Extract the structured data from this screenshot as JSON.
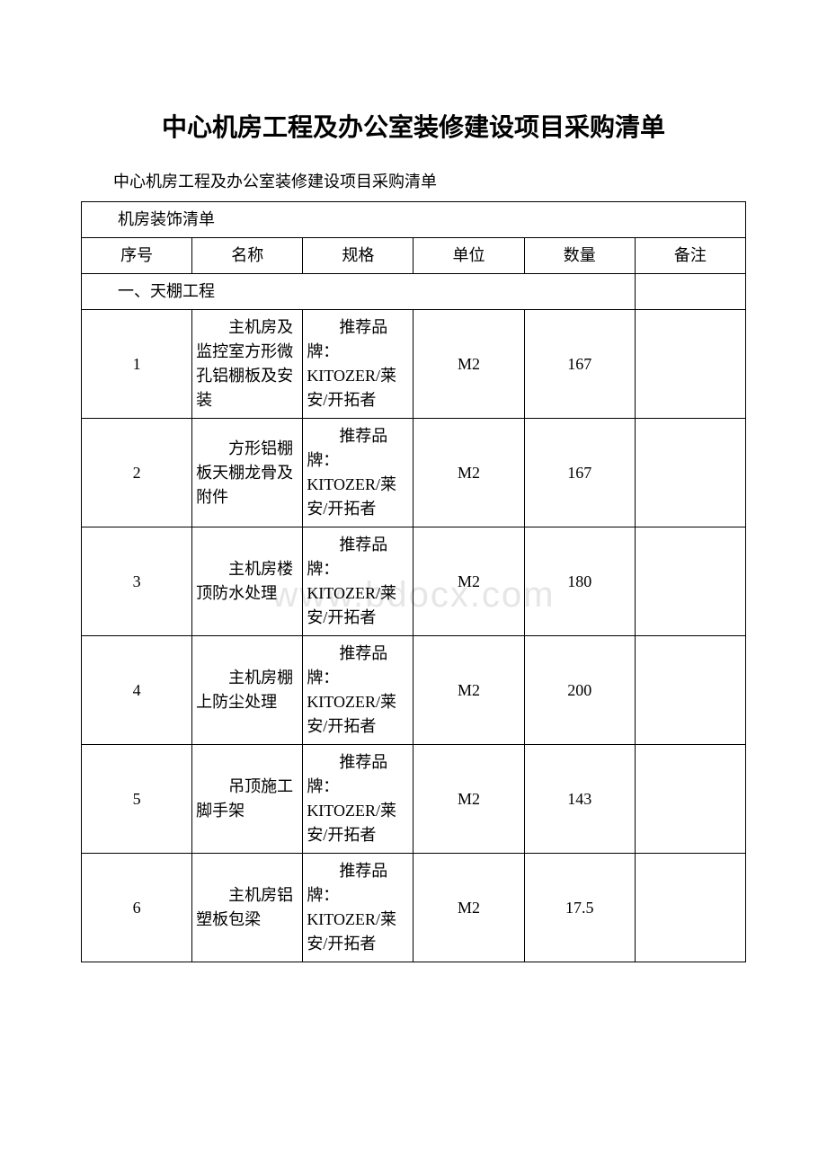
{
  "document": {
    "title": "中心机房工程及办公室装修建设项目采购清单",
    "subtitle": "中心机房工程及办公室装修建设项目采购清单",
    "watermark": "www.bdocx.com"
  },
  "table": {
    "caption": "机房装饰清单",
    "columns": [
      "序号",
      "名称",
      "规格",
      "单位",
      "数量",
      "备注"
    ],
    "section_label": "一、天棚工程",
    "rows": [
      {
        "seq": "1",
        "name": "主机房及监控室方形微孔铝棚板及安装",
        "spec": "推荐品牌：KITOZER/莱安/开拓者",
        "unit": "M2",
        "qty": "167",
        "note": ""
      },
      {
        "seq": "2",
        "name": "方形铝棚板天棚龙骨及附件",
        "spec": "推荐品牌：KITOZER/莱安/开拓者",
        "unit": "M2",
        "qty": "167",
        "note": ""
      },
      {
        "seq": "3",
        "name": "主机房楼顶防水处理",
        "spec": "推荐品牌：KITOZER/莱安/开拓者",
        "unit": "M2",
        "qty": "180",
        "note": ""
      },
      {
        "seq": "4",
        "name": "主机房棚上防尘处理",
        "spec": "推荐品牌：KITOZER/莱安/开拓者",
        "unit": "M2",
        "qty": "200",
        "note": ""
      },
      {
        "seq": "5",
        "name": "吊顶施工脚手架",
        "spec": "推荐品牌：KITOZER/莱安/开拓者",
        "unit": "M2",
        "qty": "143",
        "note": ""
      },
      {
        "seq": "6",
        "name": "主机房铝塑板包梁",
        "spec": "推荐品牌：KITOZER/莱安/开拓者",
        "unit": "M2",
        "qty": "17.5",
        "note": ""
      }
    ]
  }
}
